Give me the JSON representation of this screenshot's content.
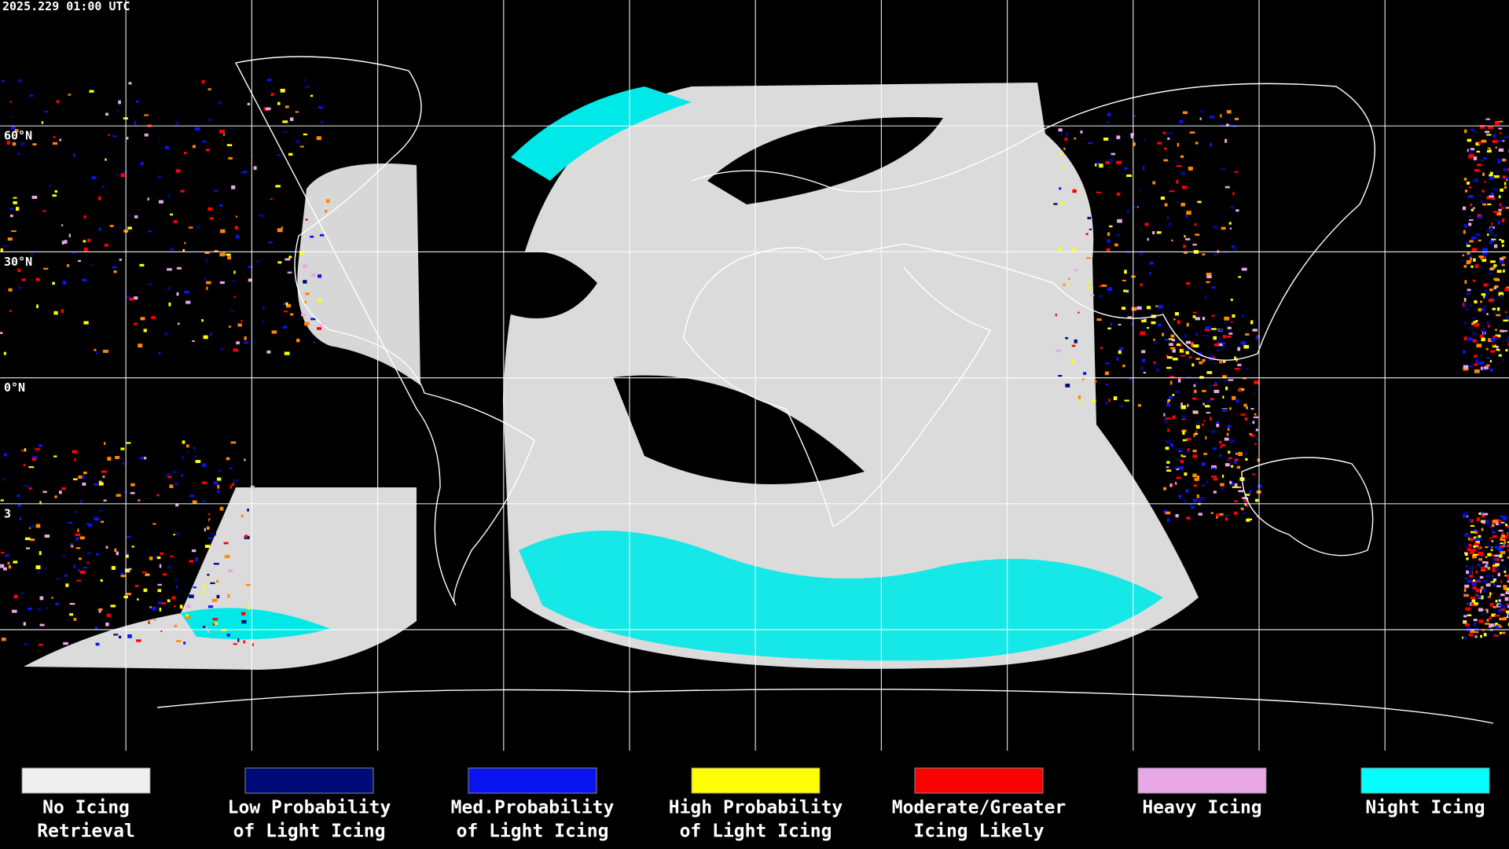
{
  "header": {
    "timestamp": "2025.229 01:00 UTC"
  },
  "map": {
    "latitude_labels": [
      "60°N",
      "30°N",
      "0°N",
      "3"
    ]
  },
  "legend": {
    "items": [
      {
        "label": [
          "No Icing",
          "Retrieval"
        ],
        "color": "#efefef"
      },
      {
        "label": [
          "Low Probability",
          "of Light Icing"
        ],
        "color": "#000a78"
      },
      {
        "label": [
          "Med.Probability",
          "of Light Icing"
        ],
        "color": "#0a14f0"
      },
      {
        "label": [
          "High Probability",
          "of Light Icing"
        ],
        "color": "#ffff00"
      },
      {
        "label": [
          "Moderate/Greater",
          "Icing Likely"
        ],
        "color": "#ff0000"
      },
      {
        "label": [
          "Heavy Icing"
        ],
        "color": "#e8a8e8"
      },
      {
        "label": [
          "Night Icing"
        ],
        "color": "#00ffff"
      }
    ]
  }
}
